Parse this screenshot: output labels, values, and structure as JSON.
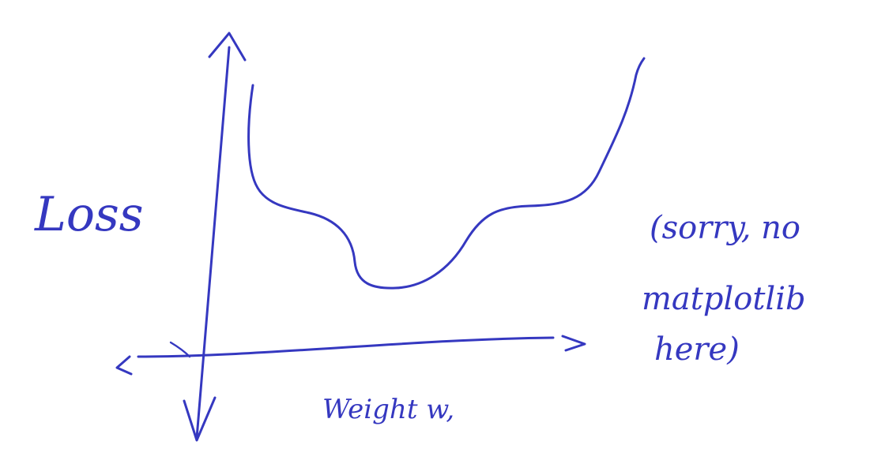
{
  "sketch": {
    "ylabel": "Loss",
    "xlabel": "Weight w,",
    "note_lines": [
      "(sorry, no",
      "matplotlib",
      "here)"
    ]
  },
  "colors": {
    "ink": "#3538c0",
    "background": "#ffffff"
  }
}
